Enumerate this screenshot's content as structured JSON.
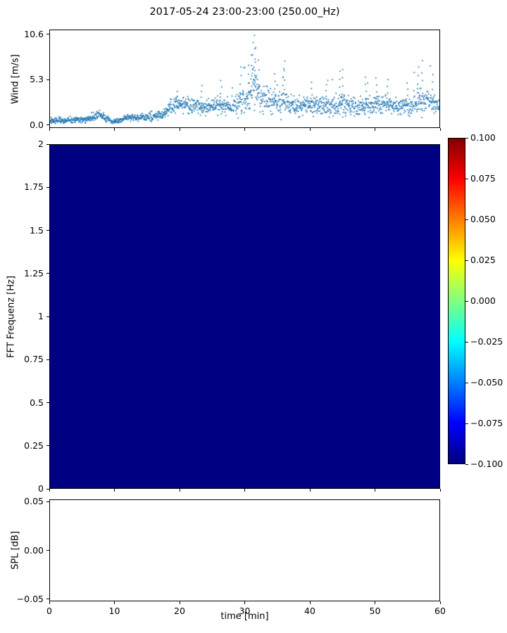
{
  "chart_data": [
    {
      "type": "scatter",
      "title": "2017-05-24 23:00-23:00 (250.00_Hz)",
      "ylabel": "Wind [m/s]",
      "xlim": [
        0,
        60
      ],
      "ylim": [
        -0.35,
        11.15
      ],
      "yticks": [
        {
          "value": 0.0,
          "label": "0.0"
        },
        {
          "value": 5.3,
          "label": "5.3"
        },
        {
          "value": 10.6,
          "label": "10.6"
        }
      ],
      "marker_color": "#1f77b4",
      "n_points": 1700,
      "envelope": [
        [
          0,
          0.45,
          0.35
        ],
        [
          2,
          0.55,
          0.4
        ],
        [
          4,
          0.5,
          0.35
        ],
        [
          6,
          0.7,
          0.45
        ],
        [
          7.5,
          1.1,
          0.55
        ],
        [
          8.5,
          0.8,
          0.45
        ],
        [
          9.5,
          0.25,
          0.2
        ],
        [
          10.5,
          0.45,
          0.3
        ],
        [
          12,
          0.8,
          0.45
        ],
        [
          14,
          0.85,
          0.45
        ],
        [
          16,
          0.95,
          0.5
        ],
        [
          17.5,
          1.2,
          0.6
        ],
        [
          18.5,
          1.9,
          0.9
        ],
        [
          19.5,
          2.5,
          1.1
        ],
        [
          20.5,
          2.4,
          1.1
        ],
        [
          21.5,
          2.1,
          1.0
        ],
        [
          23,
          2.2,
          1.05
        ],
        [
          24.5,
          2.0,
          1.0
        ],
        [
          26,
          2.3,
          1.15
        ],
        [
          27.5,
          2.0,
          1.0
        ],
        [
          29,
          2.5,
          1.4
        ],
        [
          30.5,
          3.2,
          1.9
        ],
        [
          31.5,
          4.3,
          2.7
        ],
        [
          32.5,
          3.4,
          1.9
        ],
        [
          33.5,
          2.8,
          1.5
        ],
        [
          35,
          2.4,
          1.3
        ],
        [
          36.2,
          2.8,
          1.7
        ],
        [
          37.5,
          2.2,
          1.15
        ],
        [
          39,
          2.2,
          1.15
        ],
        [
          40.5,
          2.3,
          1.2
        ],
        [
          42,
          2.1,
          1.1
        ],
        [
          43.5,
          2.3,
          1.25
        ],
        [
          45,
          2.5,
          1.5
        ],
        [
          46.5,
          2.1,
          1.1
        ],
        [
          48,
          2.3,
          1.25
        ],
        [
          49.5,
          2.3,
          1.25
        ],
        [
          51,
          2.4,
          1.3
        ],
        [
          52.5,
          2.3,
          1.2
        ],
        [
          54,
          2.1,
          1.1
        ],
        [
          55.5,
          2.4,
          1.35
        ],
        [
          57,
          2.8,
          1.6
        ],
        [
          58.5,
          2.6,
          1.45
        ],
        [
          60,
          2.4,
          1.3
        ]
      ],
      "spikes": [
        [
          31.5,
          10.55
        ],
        [
          31.3,
          9.7
        ],
        [
          31.7,
          9.1
        ],
        [
          31.0,
          8.2
        ],
        [
          32.1,
          7.6
        ],
        [
          30.6,
          7.0
        ],
        [
          36.2,
          7.5
        ],
        [
          36.0,
          6.6
        ],
        [
          29.4,
          6.8
        ],
        [
          44.7,
          6.3
        ],
        [
          45.1,
          6.5
        ],
        [
          56.8,
          6.8
        ],
        [
          57.3,
          6.1
        ],
        [
          34.6,
          6.0
        ],
        [
          59.0,
          5.9
        ],
        [
          26.3,
          5.2
        ],
        [
          40.3,
          5.0
        ],
        [
          48.6,
          5.6
        ],
        [
          50.2,
          5.5
        ],
        [
          52.1,
          5.3
        ],
        [
          23.4,
          4.6
        ],
        [
          19.6,
          3.9
        ],
        [
          55.0,
          4.9
        ],
        [
          42.6,
          4.7
        ]
      ]
    },
    {
      "type": "heatmap",
      "ylabel": "FFT Frequenz [Hz]",
      "xlim": [
        0,
        60
      ],
      "ylim": [
        0,
        2
      ],
      "uniform_value": -0.1,
      "fill_color": "#000083",
      "yticks": [
        {
          "value": 0,
          "label": "0"
        },
        {
          "value": 0.25,
          "label": "0.25"
        },
        {
          "value": 0.5,
          "label": "0.5"
        },
        {
          "value": 0.75,
          "label": "0.75"
        },
        {
          "value": 1,
          "label": "1"
        },
        {
          "value": 1.25,
          "label": "1.25"
        },
        {
          "value": 1.5,
          "label": "1.5"
        },
        {
          "value": 1.75,
          "label": "1.75"
        },
        {
          "value": 2,
          "label": "2"
        }
      ],
      "colorbar": {
        "colormap": "jet",
        "vmin": -0.1,
        "vmax": 0.1,
        "ticks": [
          {
            "value": 0.1,
            "label": "0.100"
          },
          {
            "value": 0.075,
            "label": "0.075"
          },
          {
            "value": 0.05,
            "label": "0.050"
          },
          {
            "value": 0.025,
            "label": "0.025"
          },
          {
            "value": 0.0,
            "label": "0.000"
          },
          {
            "value": -0.025,
            "label": "−0.025"
          },
          {
            "value": -0.05,
            "label": "−0.050"
          },
          {
            "value": -0.075,
            "label": "−0.075"
          },
          {
            "value": -0.1,
            "label": "−0.100"
          }
        ]
      }
    },
    {
      "type": "line",
      "ylabel": "SPL [dB]",
      "xlabel": "time [min]",
      "xlim": [
        0,
        60
      ],
      "ylim": [
        -0.0525,
        0.0525
      ],
      "yticks": [
        {
          "value": 0.05,
          "label": "0.05"
        },
        {
          "value": 0.0,
          "label": "0.00"
        },
        {
          "value": -0.05,
          "label": "−0.05"
        }
      ],
      "xticks": [
        {
          "value": 0,
          "label": "0"
        },
        {
          "value": 10,
          "label": "10"
        },
        {
          "value": 20,
          "label": "20"
        },
        {
          "value": 30,
          "label": "30"
        },
        {
          "value": 40,
          "label": "40"
        },
        {
          "value": 50,
          "label": "50"
        },
        {
          "value": 60,
          "label": "60"
        }
      ],
      "values": []
    }
  ]
}
